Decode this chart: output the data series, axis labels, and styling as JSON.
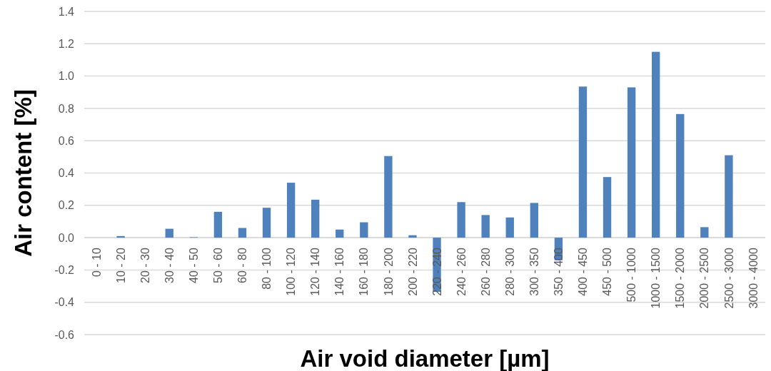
{
  "chart_data": {
    "type": "bar",
    "xlabel": "Air void diameter [µm]",
    "ylabel": "Air content [%]",
    "categories": [
      "0 - 10",
      "10 - 20",
      "20 - 30",
      "30 - 40",
      "40 - 50",
      "50 - 60",
      "60 - 80",
      "80 - 100",
      "100 - 120",
      "120 - 140",
      "140 - 160",
      "160 - 180",
      "180 - 200",
      "200 - 220",
      "220 - 240",
      "240 - 260",
      "260 - 280",
      "280 - 300",
      "300 - 350",
      "350 - 400",
      "400 - 450",
      "450 - 500",
      "500 - 1000",
      "1000 - 1500",
      "1500 - 2000",
      "2000 - 2500",
      "2500 - 3000",
      "3000 - 4000"
    ],
    "values": [
      0,
      0.01,
      0,
      0.055,
      0.003,
      0.16,
      0.06,
      0.185,
      0.34,
      0.235,
      0.05,
      0.095,
      0.505,
      0.015,
      -0.335,
      0.22,
      0.14,
      0.125,
      0.215,
      -0.14,
      0.935,
      0.375,
      0.93,
      1.15,
      0.765,
      0.065,
      0.51,
      0
    ],
    "color": "#4f81bd",
    "ylim": [
      -0.6,
      1.4
    ],
    "yticks": [
      {
        "value": -0.6,
        "label": "-0.6"
      },
      {
        "value": -0.4,
        "label": "-0.4"
      },
      {
        "value": -0.2,
        "label": "-0.2"
      },
      {
        "value": 0,
        "label": "0.0"
      },
      {
        "value": 0.2,
        "label": "0.2"
      },
      {
        "value": 0.4,
        "label": "0.4"
      },
      {
        "value": 0.6,
        "label": "0.6"
      },
      {
        "value": 0.8,
        "label": "0.8"
      },
      {
        "value": 1,
        "label": "1.0"
      },
      {
        "value": 1.2,
        "label": "1.2"
      },
      1.4
    ],
    "grid": "y"
  }
}
